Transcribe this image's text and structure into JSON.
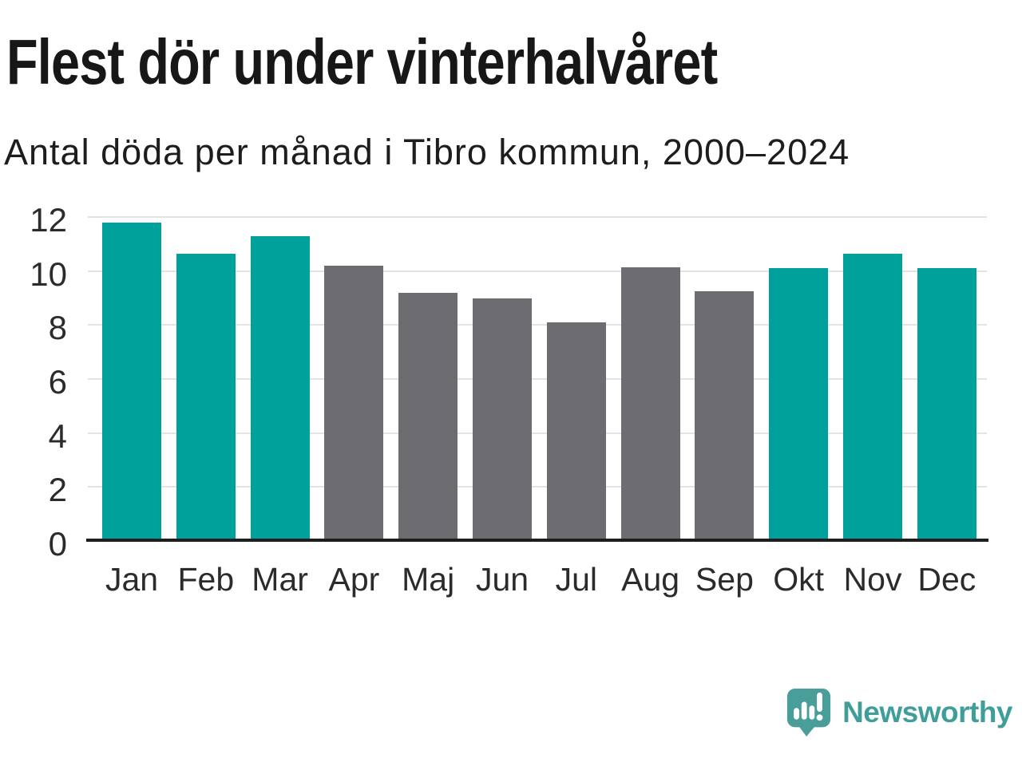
{
  "header": {
    "title": "Flest dör under vinterhalvåret",
    "subtitle": "Antal döda per månad i Tibro kommun, 2000–2024"
  },
  "chart_data": {
    "type": "bar",
    "categories": [
      "Jan",
      "Feb",
      "Mar",
      "Apr",
      "Maj",
      "Jun",
      "Jul",
      "Aug",
      "Sep",
      "Okt",
      "Nov",
      "Dec"
    ],
    "values": [
      11.8,
      10.65,
      11.3,
      10.2,
      9.2,
      9.0,
      8.1,
      10.15,
      9.25,
      10.1,
      10.65,
      10.1
    ],
    "bar_color_keys": [
      "highlight",
      "highlight",
      "highlight",
      "default",
      "default",
      "default",
      "default",
      "default",
      "default",
      "highlight",
      "highlight",
      "highlight"
    ],
    "colors": {
      "highlight": "#00a19a",
      "default": "#6d6d71"
    },
    "title": "Flest dör under vinterhalvåret",
    "subtitle": "Antal döda per månad i Tibro kommun, 2000–2024",
    "xlabel": "",
    "ylabel": "",
    "ylim": [
      0,
      12
    ],
    "yticks": [
      0,
      2,
      4,
      6,
      8,
      10,
      12
    ],
    "grid": true,
    "legend": false
  },
  "branding": {
    "name": "Newsworthy",
    "logo_icon": "speech-bubble-bar-chart-icon",
    "icon_color": "#4a9e9a",
    "text_color": "#3f9e99"
  }
}
